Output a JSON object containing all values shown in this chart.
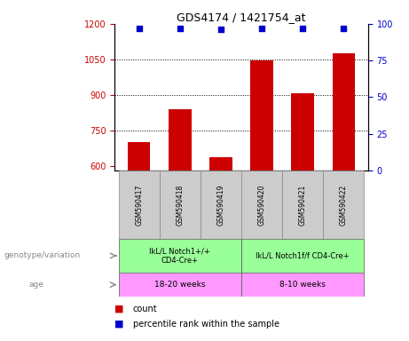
{
  "title": "GDS4174 / 1421754_at",
  "samples": [
    "GSM590417",
    "GSM590418",
    "GSM590419",
    "GSM590420",
    "GSM590421",
    "GSM590422"
  ],
  "counts": [
    700,
    840,
    635,
    1045,
    905,
    1075
  ],
  "percentile_ranks": [
    97,
    97,
    96,
    97,
    97,
    97
  ],
  "ylim_left": [
    580,
    1200
  ],
  "ylim_right": [
    0,
    100
  ],
  "yticks_left": [
    600,
    750,
    900,
    1050,
    1200
  ],
  "yticks_right": [
    0,
    25,
    50,
    75,
    100
  ],
  "bar_color": "#cc0000",
  "scatter_color": "#0000cc",
  "bar_width": 0.55,
  "genotype_groups": [
    {
      "label": "IkL/L Notch1+/+\nCD4-Cre+",
      "start": 0,
      "end": 3,
      "color": "#99ff99"
    },
    {
      "label": "IkL/L Notch1f/f CD4-Cre+",
      "start": 3,
      "end": 6,
      "color": "#99ff99"
    }
  ],
  "age_groups": [
    {
      "label": "18-20 weeks",
      "start": 0,
      "end": 3,
      "color": "#ff99ff"
    },
    {
      "label": "8-10 weeks",
      "start": 3,
      "end": 6,
      "color": "#ff99ff"
    }
  ],
  "legend_count_label": "count",
  "legend_percentile_label": "percentile rank within the sample",
  "left_axis_color": "#cc0000",
  "right_axis_color": "#0000cc",
  "grid_color": "#000000",
  "sample_box_color": "#cccccc"
}
